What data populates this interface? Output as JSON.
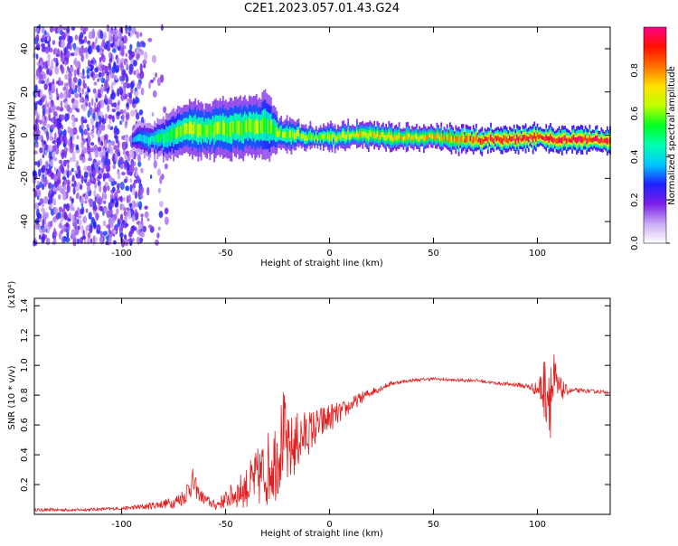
{
  "title": "C2E1.2023.057.01.43.G24",
  "chart_data": [
    {
      "type": "heatmap",
      "xlabel": "Height of straight line (km)",
      "ylabel": "Frequency (Hz)",
      "xlim": [
        -142,
        135
      ],
      "ylim": [
        -50,
        50
      ],
      "x_ticks": [
        -100,
        -50,
        0,
        50,
        100
      ],
      "y_ticks": [
        -40,
        -20,
        0,
        20,
        40
      ],
      "grid": false,
      "colorbar": {
        "label": "Normalized spectral amplitude",
        "range": [
          0,
          1
        ],
        "ticks": [
          0.0,
          0.2,
          0.4,
          0.6,
          0.8
        ],
        "colors": [
          "#ffffff",
          "#c9a9f5",
          "#7a1fe6",
          "#2020ff",
          "#00c8ff",
          "#00ffb0",
          "#00ff20",
          "#c0ff00",
          "#ffe000",
          "#ff7000",
          "#ff1000",
          "#ff0088"
        ]
      },
      "noise_region_x": [
        -142,
        -90
      ],
      "signal_ridge": {
        "x": [
          -95,
          -90,
          -85,
          -80,
          -75,
          -70,
          -65,
          -60,
          -55,
          -50,
          -45,
          -40,
          -35,
          -30,
          -25,
          -20,
          -15,
          -10,
          -5,
          0,
          10,
          20,
          30,
          40,
          50,
          60,
          70,
          80,
          90,
          100,
          110,
          120,
          135
        ],
        "frequency_center": [
          -2,
          -2,
          -2,
          -1,
          1,
          2,
          3,
          2,
          3,
          3,
          3,
          4,
          4,
          4,
          1,
          0,
          0,
          -1,
          -1,
          -1,
          0,
          0,
          -1,
          -1,
          -1,
          -2,
          -2,
          -2,
          -2,
          -1,
          -2,
          -2,
          -2
        ],
        "band_halfwidth": [
          2,
          3,
          3,
          4,
          5,
          5,
          6,
          5,
          6,
          6,
          6,
          6,
          6,
          7,
          3,
          3,
          2,
          2,
          2,
          2,
          2,
          2,
          2,
          2,
          2,
          2,
          2,
          2,
          2,
          2,
          2,
          2,
          2
        ],
        "peak_amplitude": [
          0.35,
          0.4,
          0.45,
          0.5,
          0.55,
          0.6,
          0.6,
          0.6,
          0.6,
          0.6,
          0.6,
          0.6,
          0.6,
          0.55,
          0.6,
          0.6,
          0.6,
          0.6,
          0.6,
          0.6,
          0.65,
          0.7,
          0.7,
          0.7,
          0.7,
          0.75,
          0.85,
          0.9,
          0.9,
          0.9,
          0.9,
          0.9,
          0.9
        ]
      }
    },
    {
      "type": "line",
      "xlabel": "Height of straight line (km)",
      "ylabel": "SNR (10 * v/v)",
      "y_multiplier": "(x10⁴)",
      "xlim": [
        -142,
        135
      ],
      "ylim": [
        0,
        1.45
      ],
      "x_ticks": [
        -100,
        -50,
        0,
        50,
        100
      ],
      "y_ticks": [
        0.2,
        0.4,
        0.6,
        0.8,
        1.0,
        1.2,
        1.4
      ],
      "grid": false,
      "series": [
        {
          "color": "#e02020",
          "x": [
            -142,
            -120,
            -100,
            -90,
            -80,
            -75,
            -70,
            -66,
            -63,
            -60,
            -55,
            -50,
            -45,
            -40,
            -35,
            -30,
            -25,
            -22,
            -20,
            -15,
            -10,
            -5,
            0,
            5,
            10,
            15,
            20,
            25,
            30,
            35,
            40,
            50,
            60,
            70,
            80,
            90,
            95,
            100,
            105,
            107,
            110,
            115,
            120,
            135
          ],
          "values": [
            0.03,
            0.03,
            0.04,
            0.05,
            0.07,
            0.08,
            0.12,
            0.22,
            0.14,
            0.1,
            0.06,
            0.1,
            0.14,
            0.18,
            0.24,
            0.3,
            0.4,
            0.55,
            0.4,
            0.5,
            0.55,
            0.6,
            0.65,
            0.68,
            0.73,
            0.78,
            0.82,
            0.85,
            0.88,
            0.89,
            0.9,
            0.91,
            0.9,
            0.9,
            0.88,
            0.87,
            0.86,
            0.84,
            0.85,
            0.84,
            0.84,
            0.83,
            0.83,
            0.82
          ],
          "noise_amplitude": [
            0.01,
            0.01,
            0.01,
            0.02,
            0.03,
            0.04,
            0.06,
            0.1,
            0.05,
            0.04,
            0.03,
            0.06,
            0.1,
            0.14,
            0.2,
            0.25,
            0.3,
            0.3,
            0.25,
            0.2,
            0.15,
            0.12,
            0.1,
            0.07,
            0.05,
            0.04,
            0.03,
            0.02,
            0.015,
            0.01,
            0.01,
            0.01,
            0.01,
            0.01,
            0.01,
            0.015,
            0.02,
            0.05,
            0.3,
            0.35,
            0.1,
            0.02,
            0.015,
            0.01
          ]
        }
      ]
    }
  ]
}
